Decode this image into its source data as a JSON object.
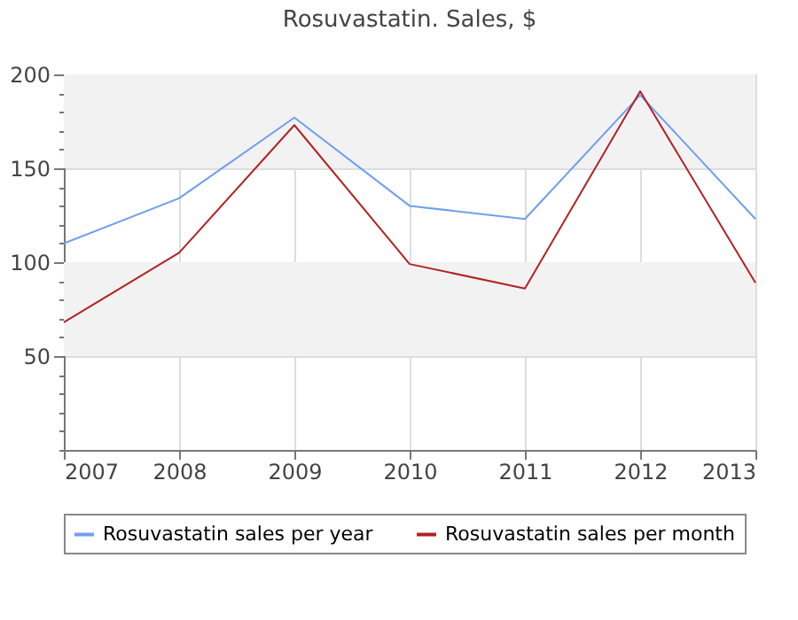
{
  "chart_data": {
    "type": "line",
    "title": "Rosuvastatin. Sales, $",
    "x": [
      2007,
      2008,
      2009,
      2010,
      2011,
      2012,
      2013
    ],
    "series": [
      {
        "name": "Rosuvastatin sales per year",
        "color": "#6f9ef0",
        "values": [
          110,
          134,
          177,
          130,
          123,
          189,
          123
        ]
      },
      {
        "name": "Rosuvastatin sales per month",
        "color": "#b22222",
        "values": [
          68,
          105,
          173,
          99,
          86,
          191,
          89
        ]
      }
    ],
    "xlim": [
      2007,
      2013
    ],
    "xticks": [
      2007,
      2008,
      2009,
      2010,
      2011,
      2012,
      2013
    ],
    "ylim": [
      0,
      200
    ],
    "yticks": [
      {
        "value": 0,
        "label": null
      },
      {
        "value": 10,
        "label": null
      },
      {
        "value": 20,
        "label": null
      },
      {
        "value": 30,
        "label": null
      },
      {
        "value": 40,
        "label": null
      },
      50,
      {
        "value": 60,
        "label": null
      },
      {
        "value": 70,
        "label": null
      },
      {
        "value": 80,
        "label": null
      },
      {
        "value": 90,
        "label": null
      },
      100,
      {
        "value": 110,
        "label": null
      },
      {
        "value": 120,
        "label": null
      },
      {
        "value": 130,
        "label": null
      },
      {
        "value": 140,
        "label": null
      },
      150,
      {
        "value": 160,
        "label": null
      },
      {
        "value": 170,
        "label": null
      },
      {
        "value": 180,
        "label": null
      },
      {
        "value": 190,
        "label": null
      },
      200
    ],
    "bands": [
      {
        "axis": "y",
        "from": 50,
        "to": 100,
        "color": "#f2f2f2"
      },
      {
        "axis": "y",
        "from": 150,
        "to": 200,
        "color": "#f2f2f2"
      }
    ],
    "grid": true,
    "legend": "bottom",
    "marker": "none",
    "line_style": "solid"
  }
}
